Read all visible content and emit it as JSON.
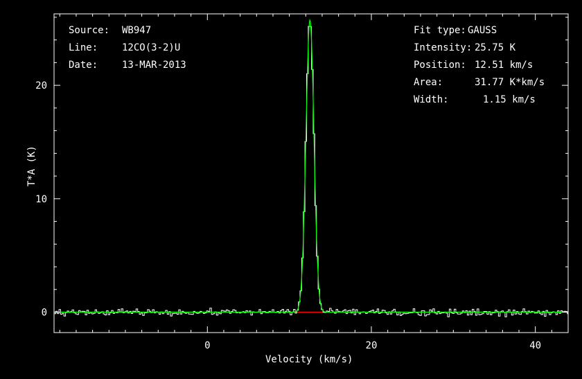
{
  "info_left": {
    "source_label": "Source:",
    "source_value": "WB947",
    "line_label": "Line:",
    "line_value": "12CO(3-2)U",
    "date_label": "Date:",
    "date_value": "13-MAR-2013"
  },
  "fit_info": {
    "type_label": "Fit type:",
    "type_value": "GAUSS",
    "intensity_label": "Intensity:",
    "intensity_value": "25.75 K",
    "position_label": "Position:",
    "position_value": "12.51 km/s",
    "area_label": "Area:",
    "area_value": "31.77 K*km/s",
    "width_label": "Width:",
    "width_value": "1.15 km/s"
  },
  "colors": {
    "background": "#000000",
    "axes": "#ffffff",
    "spectrum": "#ffffff",
    "fit": "#00ff00",
    "baseline": "#ff0000"
  },
  "chart_data": {
    "type": "line",
    "xlabel": "Velocity (km/s)",
    "ylabel": "T*A (K)",
    "xlim": [
      -18.7,
      44.0
    ],
    "ylim": [
      -1.8,
      26.3
    ],
    "xticks": [
      0,
      20,
      40
    ],
    "yticks": [
      0,
      10,
      20
    ],
    "x_minor_step": 2,
    "y_minor_step": 2,
    "series": [
      {
        "kind": "spectrum",
        "noise_rms": 0.15,
        "channel_width": 0.2
      },
      {
        "kind": "gaussian-fit",
        "amplitude": 25.75,
        "center": 12.51,
        "fwhm": 1.15
      },
      {
        "kind": "fit-window",
        "x_range": [
          10.6,
          14.6
        ],
        "y": 0
      }
    ]
  }
}
